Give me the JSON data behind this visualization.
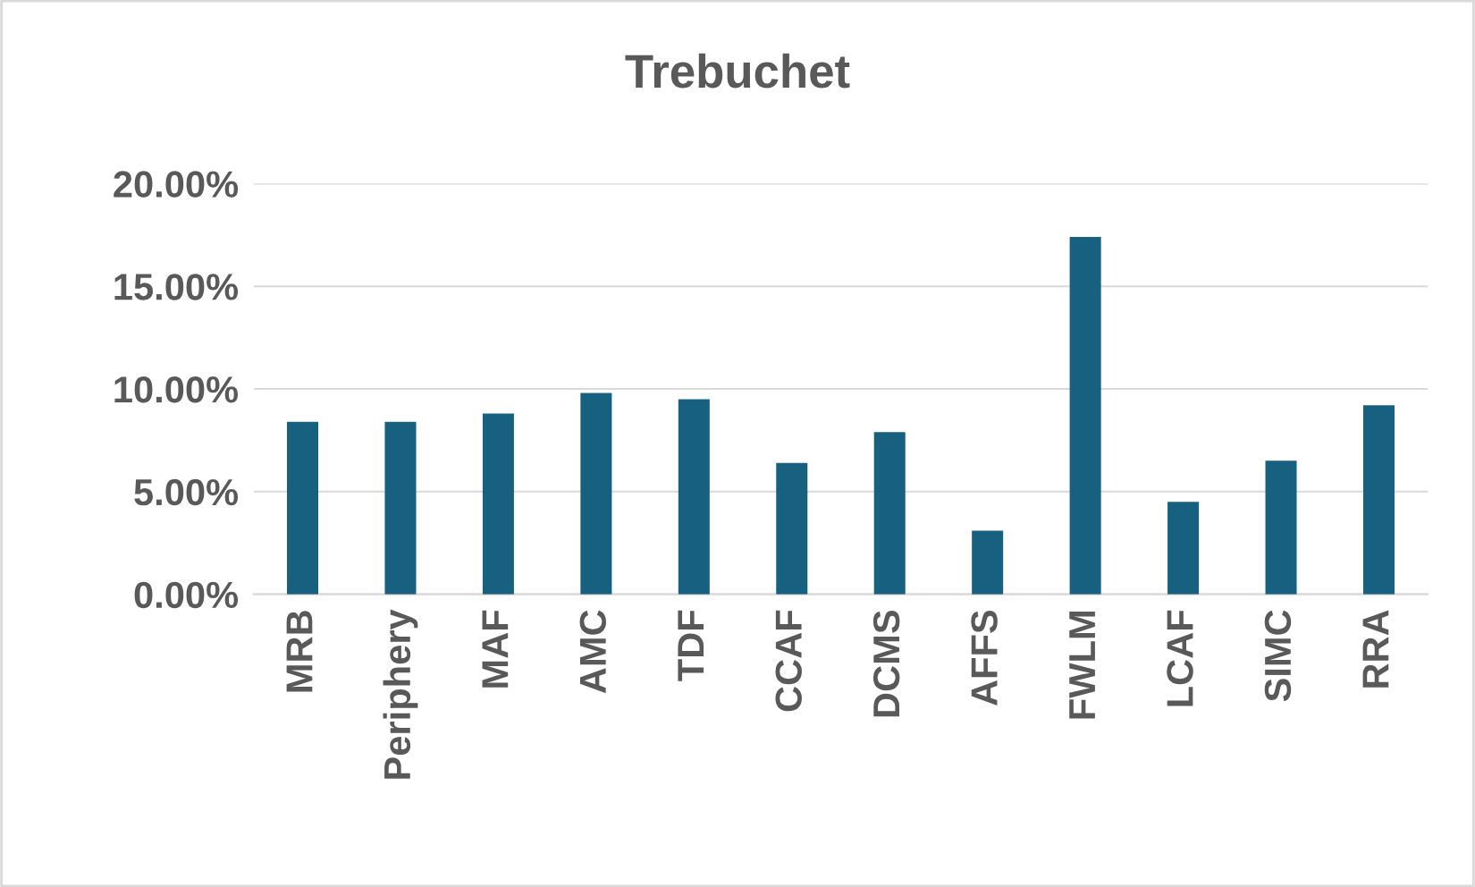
{
  "chart_data": {
    "type": "bar",
    "title": "Trebuchet",
    "categories": [
      "MRB",
      "Periphery",
      "MAF",
      "AMC",
      "TDF",
      "CCAF",
      "DCMS",
      "AFFS",
      "FWLM",
      "LCAF",
      "SIMC",
      "RRA"
    ],
    "values": [
      8.4,
      8.4,
      8.8,
      9.8,
      9.5,
      6.4,
      7.9,
      3.1,
      17.4,
      4.5,
      6.5,
      9.2
    ],
    "color": "#17607f",
    "ylim": [
      0,
      20
    ],
    "yticks": [
      {
        "value": 0,
        "label": "0.00%"
      },
      {
        "value": 5,
        "label": "5.00%"
      },
      {
        "value": 10,
        "label": "10.00%"
      },
      {
        "value": 15,
        "label": "15.00%"
      },
      {
        "value": 20,
        "label": "20.00%"
      }
    ],
    "grid": "y",
    "legend": false
  }
}
